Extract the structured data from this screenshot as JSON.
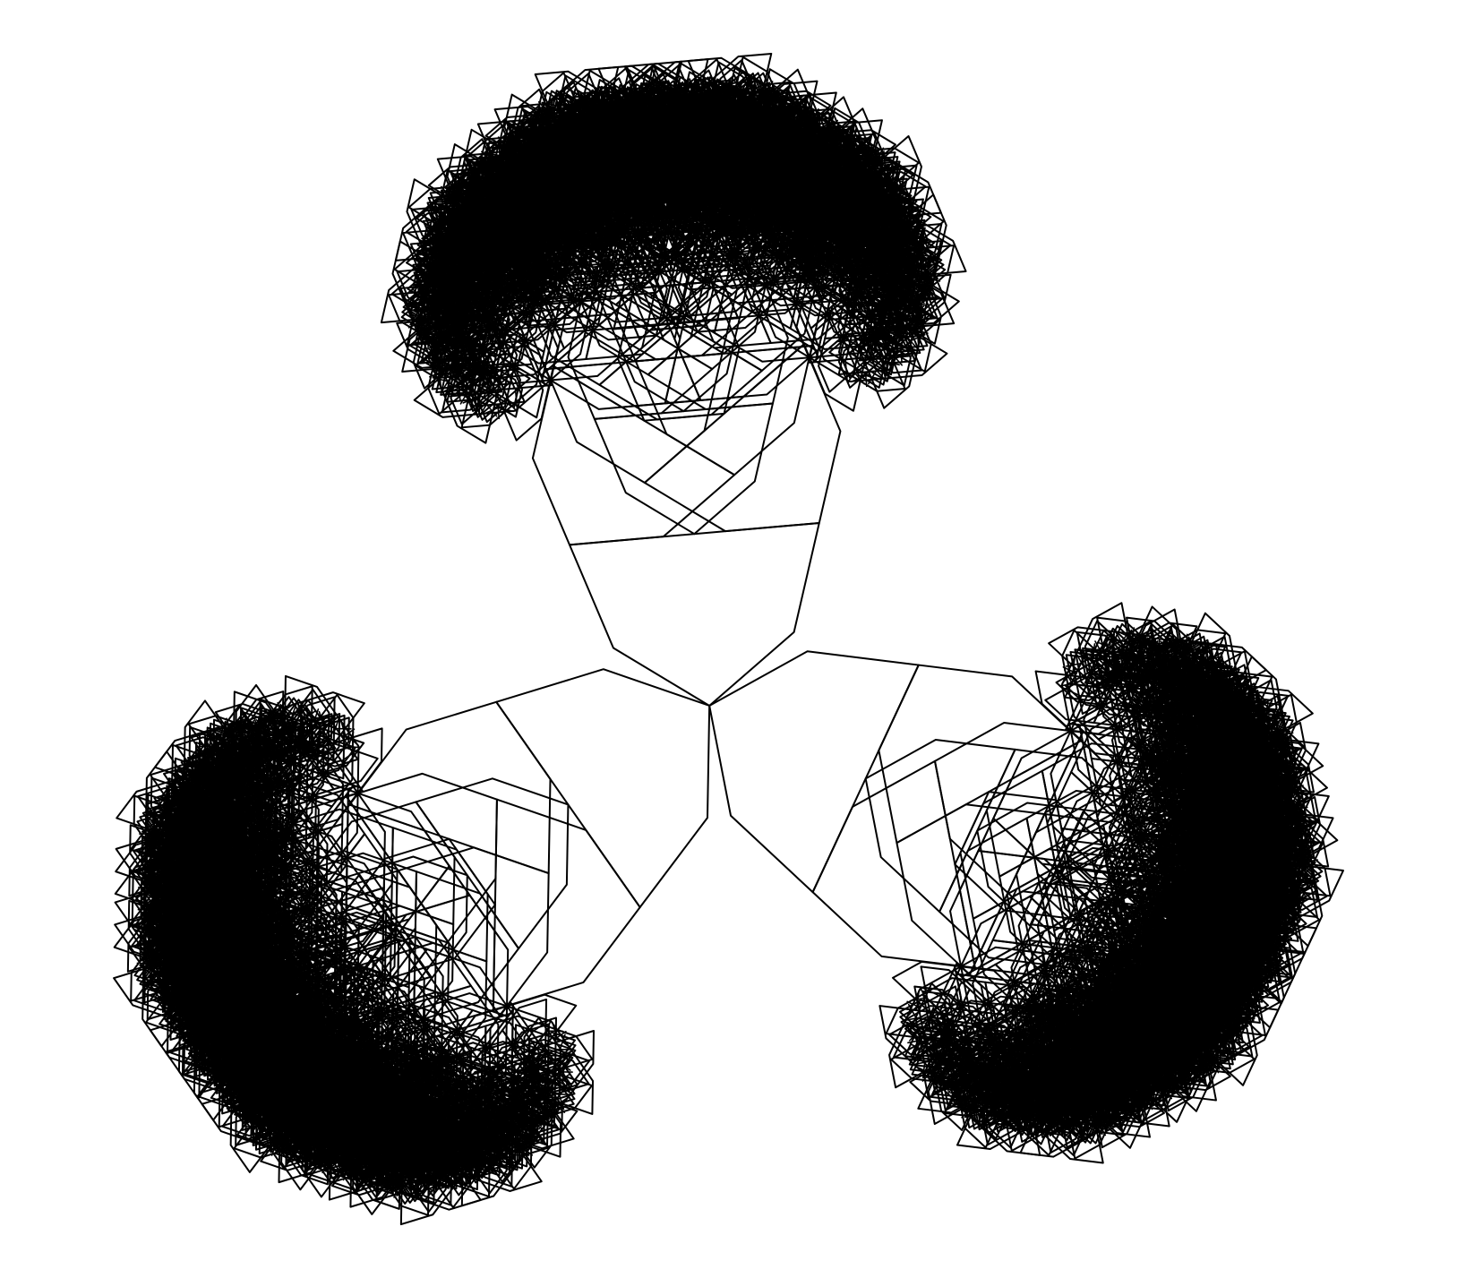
{
  "figure": {
    "kind": "pentagon-fractal-tree",
    "stroke_color": "#000000",
    "background_color": "#ffffff",
    "branching_per_pentagon": 3,
    "recursion_depth": 8
  }
}
